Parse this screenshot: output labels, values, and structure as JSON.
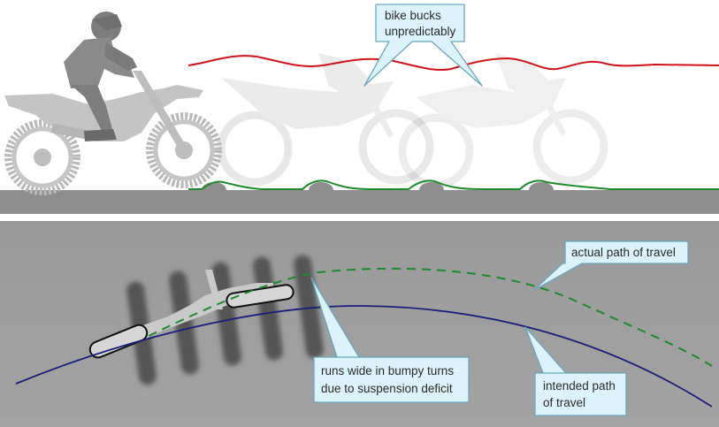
{
  "colors": {
    "road": "#8c8c8c",
    "panel_bg": "#999999",
    "red_line": "#d0121b",
    "green_line": "#1d8a2e",
    "blue_line": "#1a1f7a",
    "callout_fill": "#ddf3fb",
    "callout_stroke": "#6aa6bf"
  },
  "top_panel": {
    "callout": {
      "line1": "bike bucks",
      "line2": "unpredictably"
    }
  },
  "bottom_panel": {
    "actual_path": {
      "line1": "actual path of travel"
    },
    "runs_wide": {
      "line1": "runs wide in bumpy turns",
      "line2": "due to suspension deficit"
    },
    "intended_path": {
      "line1": "intended path",
      "line2": "of travel"
    }
  }
}
